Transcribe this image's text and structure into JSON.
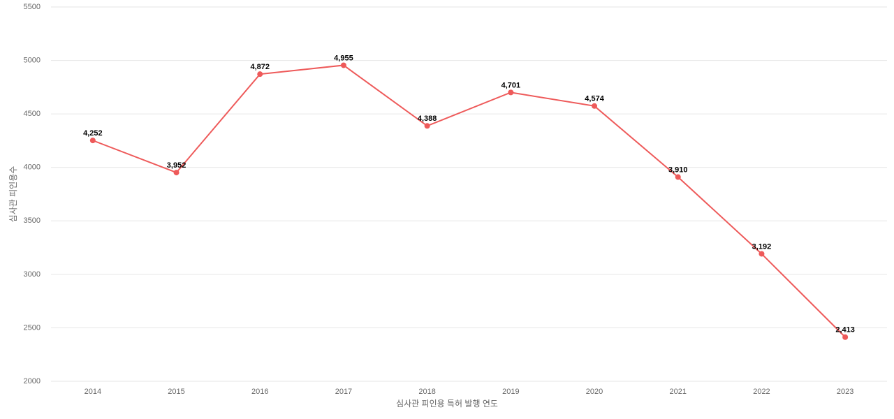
{
  "chart_data": {
    "type": "line",
    "x_label": "심사관 피인용 특허 발행 연도",
    "y_label": "심사관 피인용수",
    "categories": [
      "2014",
      "2015",
      "2016",
      "2017",
      "2018",
      "2019",
      "2020",
      "2021",
      "2022",
      "2023"
    ],
    "values": [
      4252,
      3952,
      4872,
      4955,
      4388,
      4701,
      4574,
      3910,
      3192,
      2413
    ],
    "value_labels": [
      "4,252",
      "3,952",
      "4,872",
      "4,955",
      "4,388",
      "4,701",
      "4,574",
      "3,910",
      "3,192",
      "2,413"
    ],
    "color": "#ee5a5a",
    "ylim": [
      2000,
      5500
    ],
    "yticks": [
      2000,
      2500,
      3000,
      3500,
      4000,
      4500,
      5000,
      5500
    ],
    "grid": true
  }
}
